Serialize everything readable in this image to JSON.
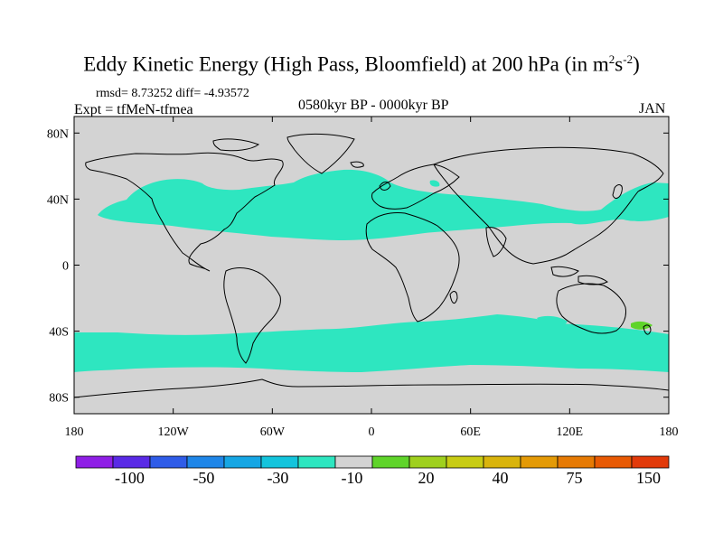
{
  "title": {
    "prefix": "Eddy Kinetic Energy (High Pass, Bloomfield) at 200 hPa (in m",
    "exp1": "2",
    "mid": "s",
    "exp2": "-2",
    "suffix": ")"
  },
  "stats": "rmsd= 8.73252 diff= -4.93572",
  "expt": "Expt = tfMeN-tfmea",
  "period": "0580kyr BP - 0000kyr BP",
  "month": "JAN",
  "map": {
    "lon_ticks": [
      "180",
      "120W",
      "60W",
      "0",
      "60E",
      "120E",
      "180"
    ],
    "lat_ticks": [
      "80N",
      "40N",
      "0",
      "40S",
      "80S"
    ],
    "lat_values": [
      80,
      40,
      0,
      -40,
      -80
    ],
    "background_color": "#d3d3d3",
    "band_color": "#2ee6c0",
    "positive_patch_color": "#5fd42a"
  },
  "colorbar": {
    "colors": [
      "#8f1fe6",
      "#5a2ae6",
      "#2f5ce8",
      "#1f86e8",
      "#16a6e4",
      "#13c4dc",
      "#2ee6c0",
      "#d3d3d3",
      "#5fd42a",
      "#9fd01e",
      "#c8cc14",
      "#d9b40c",
      "#e49a06",
      "#e67a04",
      "#e85a04",
      "#e23a0a"
    ],
    "labels": [
      "-100",
      "-50",
      "-30",
      "-10",
      "20",
      "40",
      "75",
      "150"
    ]
  }
}
